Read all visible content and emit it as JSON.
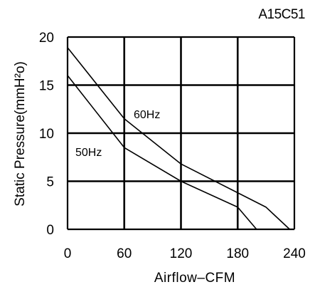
{
  "model_label": "A15C51",
  "chart_data": {
    "type": "line",
    "title": "",
    "xlabel": "Airflow–CFM",
    "ylabel": "Static Pressure(mmH²o)",
    "xlim": [
      0,
      240
    ],
    "ylim": [
      0,
      20
    ],
    "xticks": [
      "0",
      "60",
      "120",
      "180",
      "240"
    ],
    "yticks": [
      "0",
      "5",
      "10",
      "15",
      "20"
    ],
    "grid": true,
    "series": [
      {
        "name": "60Hz",
        "x": [
          0,
          60,
          120,
          210,
          235
        ],
        "y": [
          18.9,
          11.5,
          6.8,
          2.3,
          0
        ]
      },
      {
        "name": "50Hz",
        "x": [
          0,
          60,
          120,
          180,
          200
        ],
        "y": [
          16.0,
          8.5,
          5.0,
          2.3,
          0
        ]
      }
    ]
  }
}
